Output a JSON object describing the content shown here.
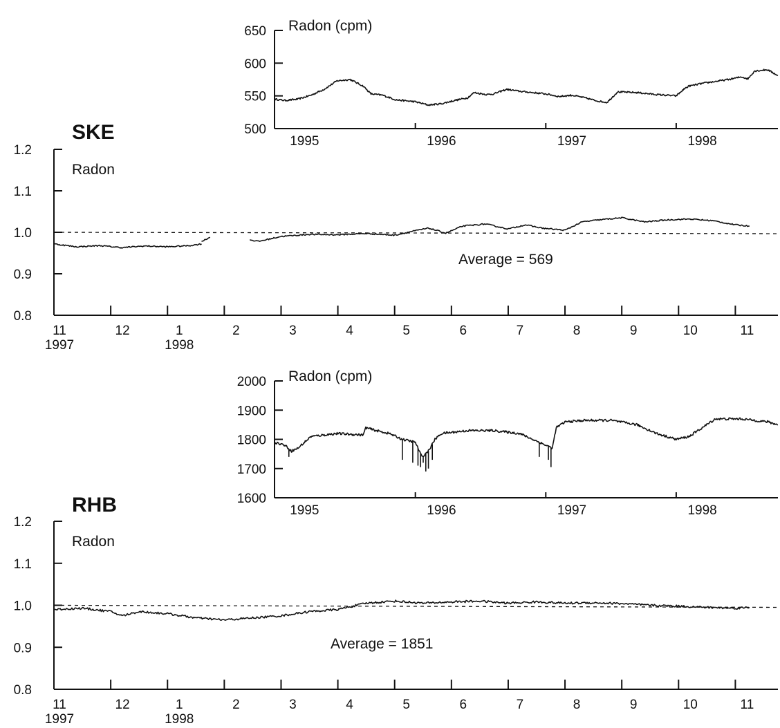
{
  "chart_data": [
    {
      "id": "ske_inset",
      "type": "line",
      "panel_label": "Radon (cpm)",
      "x_unit": "year",
      "xlim": [
        1994.92,
        1998.78
      ],
      "ylim": [
        500,
        650
      ],
      "yticks": [
        500,
        550,
        600,
        650
      ],
      "xticks": [
        {
          "value": 1996,
          "label": "1996"
        },
        {
          "value": 1997,
          "label": "1997"
        },
        {
          "value": 1998,
          "label": "1998"
        }
      ],
      "xtick_labels": [
        {
          "value": 1995.15,
          "label": "1995"
        },
        {
          "value": 1996.2,
          "label": "1996"
        },
        {
          "value": 1997.2,
          "label": "1997"
        },
        {
          "value": 1998.2,
          "label": "1998"
        }
      ],
      "series": [
        {
          "noise": 2.5,
          "x": [
            1994.92,
            1995.0,
            1995.1,
            1995.2,
            1995.3,
            1995.4,
            1995.5,
            1995.6,
            1995.66,
            1995.75,
            1995.85,
            1996.0,
            1996.1,
            1996.2,
            1996.3,
            1996.4,
            1996.45,
            1996.55,
            1996.6,
            1996.7,
            1996.8,
            1996.9,
            1997.0,
            1997.1,
            1997.2,
            1997.3,
            1997.4,
            1997.47,
            1997.55,
            1997.7,
            1997.85,
            1998.0,
            1998.07,
            1998.1,
            1998.2,
            1998.3,
            1998.4,
            1998.5,
            1998.55,
            1998.6,
            1998.7,
            1998.78
          ],
          "y": [
            545,
            543,
            545,
            551,
            560,
            573,
            575,
            565,
            553,
            551,
            544,
            541,
            536,
            538,
            543,
            547,
            555,
            552,
            553,
            560,
            557,
            555,
            553,
            549,
            551,
            547,
            542,
            540,
            556,
            555,
            552,
            550,
            562,
            565,
            569,
            572,
            575,
            579,
            576,
            588,
            590,
            581
          ]
        }
      ]
    },
    {
      "id": "ske_main",
      "type": "line",
      "station": "SKE",
      "panel_label": "Radon",
      "x_unit": "month index (0 = Nov 1997)",
      "xlim": [
        0,
        12.75
      ],
      "ylim": [
        0.8,
        1.2
      ],
      "yticks": [
        0.8,
        0.9,
        1.0,
        1.1,
        1.2
      ],
      "ytick_labels": [
        "0.8",
        "0.9",
        "1.0",
        "1.1",
        "1.2"
      ],
      "xticks": [
        {
          "value": 0,
          "label": "11",
          "sublabel": "1997"
        },
        {
          "value": 1,
          "label": "12"
        },
        {
          "value": 2,
          "label": "1",
          "sublabel": "1998"
        },
        {
          "value": 3,
          "label": "2"
        },
        {
          "value": 4,
          "label": "3"
        },
        {
          "value": 5,
          "label": "4"
        },
        {
          "value": 6,
          "label": "5"
        },
        {
          "value": 7,
          "label": "6"
        },
        {
          "value": 8,
          "label": "7"
        },
        {
          "value": 9,
          "label": "8"
        },
        {
          "value": 10,
          "label": "9"
        },
        {
          "value": 11,
          "label": "10"
        },
        {
          "value": 12,
          "label": "11"
        }
      ],
      "reference_line": 1.0,
      "annotation": "Average = 569",
      "series": [
        {
          "noise": 0.003,
          "segments": [
            {
              "x": [
                0,
                0.4,
                0.8,
                1.2,
                1.6,
                2.0,
                2.4,
                2.6
              ],
              "y": [
                0.972,
                0.965,
                0.968,
                0.963,
                0.967,
                0.965,
                0.968,
                0.972
              ]
            },
            {
              "x": [
                2.6,
                2.75
              ],
              "y": [
                0.978,
                0.988
              ]
            },
            {
              "x": [
                3.45,
                3.6,
                4.0,
                4.5,
                5.0,
                5.5,
                6.0,
                6.3,
                6.6,
                6.9,
                7.2,
                7.6,
                8.0,
                8.3,
                8.6,
                9.0,
                9.3,
                9.6,
                10.0,
                10.4,
                10.8,
                11.2,
                11.6,
                12.0,
                12.25
              ],
              "y": [
                0.982,
                0.978,
                0.99,
                0.995,
                0.994,
                0.997,
                0.993,
                1.002,
                1.01,
                0.998,
                1.015,
                1.02,
                1.008,
                1.018,
                1.01,
                1.005,
                1.025,
                1.03,
                1.035,
                1.025,
                1.03,
                1.032,
                1.028,
                1.018,
                1.015
              ]
            }
          ]
        }
      ]
    },
    {
      "id": "rhb_inset",
      "type": "line",
      "panel_label": "Radon (cpm)",
      "x_unit": "year",
      "xlim": [
        1994.92,
        1998.78
      ],
      "ylim": [
        1600,
        2000
      ],
      "yticks": [
        1600,
        1700,
        1800,
        1900,
        2000
      ],
      "xticks": [
        {
          "value": 1996,
          "label": "1996"
        },
        {
          "value": 1997,
          "label": "1997"
        },
        {
          "value": 1998,
          "label": "1998"
        }
      ],
      "xtick_labels": [
        {
          "value": 1995.15,
          "label": "1995"
        },
        {
          "value": 1996.2,
          "label": "1996"
        },
        {
          "value": 1997.2,
          "label": "1997"
        },
        {
          "value": 1998.2,
          "label": "1998"
        }
      ],
      "series": [
        {
          "noise": 8,
          "x": [
            1994.92,
            1995.0,
            1995.05,
            1995.1,
            1995.2,
            1995.4,
            1995.6,
            1995.62,
            1995.7,
            1995.8,
            1995.9,
            1996.0,
            1996.05,
            1996.1,
            1996.15,
            1996.2,
            1996.4,
            1996.6,
            1996.8,
            1996.9,
            1997.0,
            1997.05,
            1997.08,
            1997.15,
            1997.3,
            1997.5,
            1997.7,
            1997.85,
            1998.0,
            1998.1,
            1998.2,
            1998.3,
            1998.5,
            1998.7,
            1998.78
          ],
          "y": [
            1790,
            1780,
            1760,
            1770,
            1810,
            1820,
            1815,
            1840,
            1830,
            1820,
            1800,
            1790,
            1740,
            1760,
            1800,
            1820,
            1830,
            1830,
            1820,
            1800,
            1780,
            1770,
            1840,
            1860,
            1865,
            1865,
            1850,
            1820,
            1800,
            1810,
            1840,
            1870,
            1870,
            1860,
            1850
          ]
        }
      ],
      "spikes": [
        {
          "x": 1995.03,
          "y": 1740
        },
        {
          "x": 1995.9,
          "y": 1730
        },
        {
          "x": 1995.98,
          "y": 1720
        },
        {
          "x": 1996.02,
          "y": 1710
        },
        {
          "x": 1996.04,
          "y": 1705
        },
        {
          "x": 1996.06,
          "y": 1720
        },
        {
          "x": 1996.08,
          "y": 1690
        },
        {
          "x": 1996.1,
          "y": 1700
        },
        {
          "x": 1996.13,
          "y": 1730
        },
        {
          "x": 1996.95,
          "y": 1740
        },
        {
          "x": 1997.02,
          "y": 1730
        },
        {
          "x": 1997.04,
          "y": 1705
        }
      ]
    },
    {
      "id": "rhb_main",
      "type": "line",
      "station": "RHB",
      "panel_label": "Radon",
      "x_unit": "month index (0 = Nov 1997)",
      "xlim": [
        0,
        12.75
      ],
      "ylim": [
        0.8,
        1.2
      ],
      "yticks": [
        0.8,
        0.9,
        1.0,
        1.1,
        1.2
      ],
      "ytick_labels": [
        "0.8",
        "0.9",
        "1.0",
        "1.1",
        "1.2"
      ],
      "xticks": [
        {
          "value": 0,
          "label": "11",
          "sublabel": "1997"
        },
        {
          "value": 1,
          "label": "12"
        },
        {
          "value": 2,
          "label": "1",
          "sublabel": "1998"
        },
        {
          "value": 3,
          "label": "2"
        },
        {
          "value": 4,
          "label": "3"
        },
        {
          "value": 5,
          "label": "4"
        },
        {
          "value": 6,
          "label": "5"
        },
        {
          "value": 7,
          "label": "6"
        },
        {
          "value": 8,
          "label": "7"
        },
        {
          "value": 9,
          "label": "8"
        },
        {
          "value": 10,
          "label": "9"
        },
        {
          "value": 11,
          "label": "10"
        },
        {
          "value": 12,
          "label": "11"
        }
      ],
      "reference_line": 1.0,
      "annotation": "Average = 1851",
      "series": [
        {
          "noise": 0.005,
          "x": [
            0,
            0.5,
            1.0,
            1.2,
            1.5,
            2.0,
            2.5,
            3.0,
            3.5,
            4.0,
            4.5,
            5.0,
            5.5,
            6.0,
            6.5,
            7.0,
            7.5,
            8.0,
            8.5,
            9.0,
            9.5,
            10.0,
            10.5,
            11.0,
            11.5,
            12.0,
            12.25
          ],
          "y": [
            0.99,
            0.993,
            0.985,
            0.975,
            0.985,
            0.98,
            0.97,
            0.965,
            0.97,
            0.975,
            0.985,
            0.99,
            1.005,
            1.01,
            1.005,
            1.008,
            1.01,
            1.005,
            1.008,
            1.005,
            1.006,
            1.004,
            1.0,
            0.998,
            0.995,
            0.993,
            0.995
          ]
        }
      ]
    }
  ]
}
